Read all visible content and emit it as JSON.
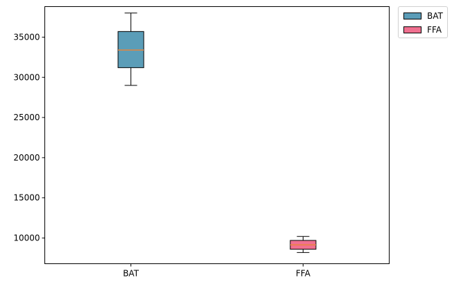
{
  "chart_data": {
    "type": "box",
    "title": "",
    "xlabel": "",
    "ylabel": "",
    "ylim": [
      6800,
      38800
    ],
    "yticks": [
      10000,
      15000,
      20000,
      25000,
      30000,
      35000
    ],
    "categories": [
      "BAT",
      "FFA"
    ],
    "series": [
      {
        "name": "BAT",
        "min": 29000,
        "q1": 31200,
        "median": 33400,
        "q3": 35700,
        "max": 38000,
        "color": "#5b9db8"
      },
      {
        "name": "FFA",
        "min": 8200,
        "q1": 8600,
        "median": 9150,
        "q3": 9700,
        "max": 10200,
        "color": "#f07090"
      }
    ],
    "median_color": "#e8853a",
    "legend": {
      "position": "outside-top-right",
      "entries": [
        "BAT",
        "FFA"
      ]
    },
    "grid": false
  }
}
